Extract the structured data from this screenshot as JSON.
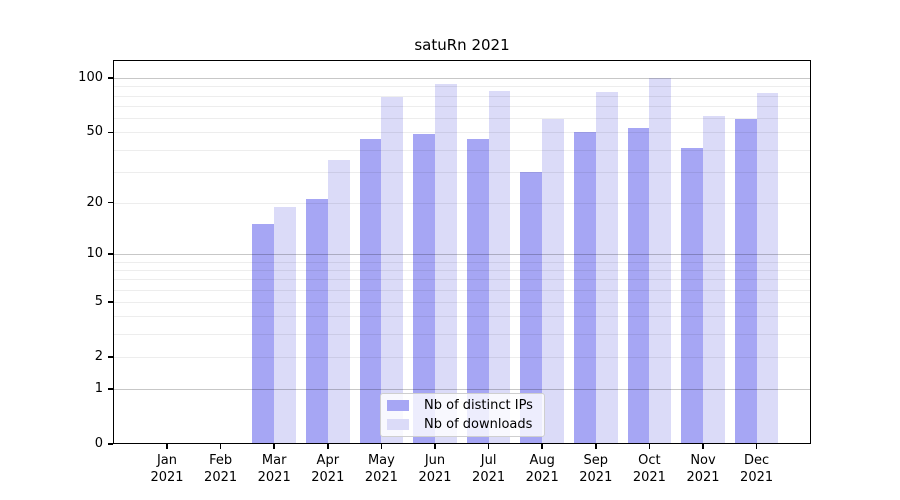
{
  "chart_data": {
    "type": "bar",
    "title": "satuRn 2021",
    "categories": [
      "Jan 2021",
      "Feb 2021",
      "Mar 2021",
      "Apr 2021",
      "May 2021",
      "Jun 2021",
      "Jul 2021",
      "Aug 2021",
      "Sep 2021",
      "Oct 2021",
      "Nov 2021",
      "Dec 2021"
    ],
    "series": [
      {
        "name": "Nb of distinct IPs",
        "color": "#a6a6f4",
        "values": [
          0,
          0,
          15,
          21,
          46,
          49,
          46,
          30,
          50,
          53,
          41,
          59
        ]
      },
      {
        "name": "Nb of downloads",
        "color": "#dbdbf8",
        "values": [
          0,
          0,
          19,
          35,
          79,
          93,
          85,
          59,
          84,
          100,
          62,
          83
        ]
      }
    ],
    "yscale": "log1p",
    "yticks": [
      0,
      1,
      2,
      5,
      10,
      20,
      50,
      100
    ],
    "major_gridlines": [
      1,
      10,
      100
    ],
    "minor_gridlines": [
      2,
      3,
      4,
      5,
      6,
      7,
      8,
      9,
      20,
      30,
      40,
      50,
      60,
      70,
      80,
      90
    ],
    "ylim": [
      0,
      126
    ],
    "grid": "on, drawn above bars",
    "legend_position": "lower center",
    "colors": {
      "background": "#ffffff",
      "axis": "#000000",
      "major_grid": "#c7c7c7",
      "minor_grid": "#ededed"
    }
  }
}
